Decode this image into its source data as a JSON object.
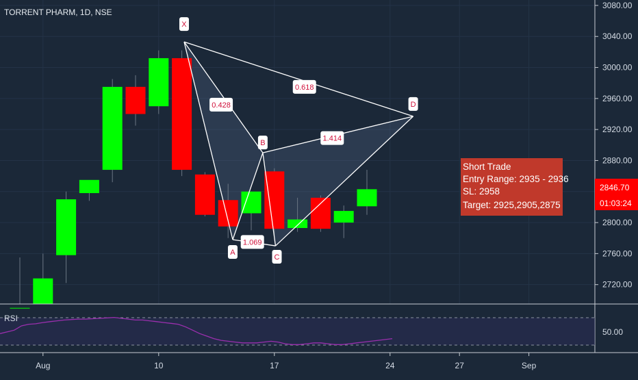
{
  "chart_data": {
    "type": "candlestick",
    "title": "TORRENT PHARM, 1D, NSE",
    "y_ticks": [
      2720,
      2760,
      2800,
      2840,
      2880,
      2920,
      2960,
      3000,
      3040,
      3080
    ],
    "y_tick_labels": [
      "2720.00",
      "2760.00",
      "2800.00",
      "2840.00",
      "2880.00",
      "2920.00",
      "2960.00",
      "3000.00",
      "3040.00",
      "3080.00"
    ],
    "ylim": [
      2695,
      3087
    ],
    "x_ticks": [
      {
        "index": 1,
        "label": "Aug"
      },
      {
        "index": 6,
        "label": "10"
      },
      {
        "index": 11,
        "label": "17"
      },
      {
        "index": 16,
        "label": "24"
      },
      {
        "index": 19,
        "label": "27"
      },
      {
        "index": 22,
        "label": "Sep"
      }
    ],
    "candles": [
      {
        "i": 0,
        "open": 2660,
        "high": 2755,
        "low": 2620,
        "close": 2690
      },
      {
        "i": 1,
        "open": 2690,
        "high": 2760,
        "low": 2685,
        "close": 2728
      },
      {
        "i": 2,
        "open": 2758,
        "high": 2840,
        "low": 2722,
        "close": 2830
      },
      {
        "i": 3,
        "open": 2838,
        "high": 2852,
        "low": 2828,
        "close": 2855
      },
      {
        "i": 4,
        "open": 2868,
        "high": 2985,
        "low": 2852,
        "close": 2975
      },
      {
        "i": 5,
        "open": 2975,
        "high": 2990,
        "low": 2925,
        "close": 2940
      },
      {
        "i": 6,
        "open": 2950,
        "high": 3022,
        "low": 2940,
        "close": 3012
      },
      {
        "i": 7,
        "open": 3012,
        "high": 3022,
        "low": 2860,
        "close": 2868
      },
      {
        "i": 8,
        "open": 2862,
        "high": 2865,
        "low": 2808,
        "close": 2810
      },
      {
        "i": 9,
        "open": 2829,
        "high": 2850,
        "low": 2780,
        "close": 2795
      },
      {
        "i": 10,
        "open": 2812,
        "high": 2840,
        "low": 2790,
        "close": 2840
      },
      {
        "i": 11,
        "open": 2866,
        "high": 2870,
        "low": 2782,
        "close": 2792
      },
      {
        "i": 12,
        "open": 2793,
        "high": 2832,
        "low": 2788,
        "close": 2804
      },
      {
        "i": 13,
        "open": 2832,
        "high": 2835,
        "low": 2788,
        "close": 2792
      },
      {
        "i": 14,
        "open": 2800,
        "high": 2822,
        "low": 2780,
        "close": 2815
      },
      {
        "i": 15,
        "open": 2821,
        "high": 2868,
        "low": 2810,
        "close": 2843
      }
    ],
    "pattern_points": [
      {
        "name": "X",
        "i": 7.1,
        "price": 3033
      },
      {
        "name": "A",
        "i": 9.2,
        "price": 2778
      },
      {
        "name": "B",
        "i": 10.5,
        "price": 2890
      },
      {
        "name": "C",
        "i": 11.05,
        "price": 2770
      },
      {
        "name": "D",
        "i": 17.0,
        "price": 2937
      }
    ],
    "ratios": [
      {
        "label": "0.618",
        "i": 12.3,
        "price": 2975
      },
      {
        "label": "0.428",
        "i": 8.7,
        "price": 2952
      },
      {
        "label": "1.414",
        "i": 13.5,
        "price": 2909
      },
      {
        "label": "1.069",
        "i": 10.05,
        "price": 2775
      }
    ],
    "trade_box": {
      "lines": [
        "Short Trade",
        "Entry Range: 2935 - 2936",
        "SL: 2958",
        "Target: 2925,2905,2875"
      ]
    },
    "last_price": {
      "value": "2846.70",
      "timer": "01:03:24"
    },
    "rsi": {
      "label": "RSI",
      "tick_label": "50.00",
      "values": [
        40,
        44,
        48,
        58,
        62,
        63,
        66,
        68,
        70,
        72,
        73,
        74,
        74,
        75,
        76,
        77,
        78,
        76,
        74,
        72,
        72,
        70,
        68,
        66,
        64,
        62,
        56,
        48,
        40,
        34,
        28,
        24,
        22,
        20,
        18,
        18,
        18,
        20,
        22,
        20,
        16,
        14,
        14,
        16,
        18,
        18,
        16,
        14,
        14,
        16,
        18,
        20,
        22,
        24,
        26,
        28
      ]
    },
    "colors": {
      "background": "#1b2838",
      "bull": "#00ff00",
      "bear": "#ff0000",
      "pattern_line": "#ffffff",
      "trade_box": "#c0392b",
      "price_tag": "#ff0000",
      "rsi_line": "#9b2fae"
    }
  }
}
